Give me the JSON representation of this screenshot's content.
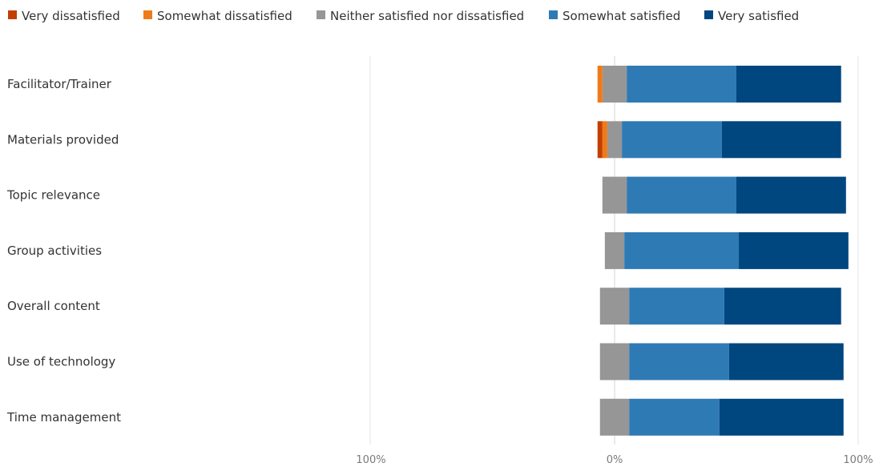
{
  "chart_data": {
    "type": "bar",
    "orientation": "horizontal",
    "stacked": "diverging",
    "title": "",
    "xlabel": "",
    "ylabel": "",
    "xlim": [
      -100,
      100
    ],
    "x_ticks": [
      "100%",
      "0%",
      "100%"
    ],
    "x_tick_values": [
      -100,
      0,
      100
    ],
    "legend_position": "top-left",
    "grid": false,
    "categories": [
      "Facilitator/Trainer",
      "Materials provided",
      "Topic relevance",
      "Group activities",
      "Overall content",
      "Use of technology",
      "Time management"
    ],
    "series": [
      {
        "name": "Very dissatisfied",
        "color": "#c43e00",
        "values": [
          0,
          2,
          0,
          0,
          0,
          0,
          0
        ]
      },
      {
        "name": "Somewhat dissatisfied",
        "color": "#ef7a1a",
        "values": [
          2,
          2,
          0,
          0,
          0,
          0,
          0
        ]
      },
      {
        "name": "Neither satisfied nor dissatisfied",
        "color": "#969696",
        "values": [
          10,
          6,
          10,
          8,
          12,
          12,
          12
        ]
      },
      {
        "name": "Somewhat satisfied",
        "color": "#2e7ab5",
        "values": [
          45,
          41,
          45,
          47,
          39,
          41,
          37
        ]
      },
      {
        "name": "Very satisfied",
        "color": "#00467f",
        "values": [
          43,
          49,
          45,
          45,
          48,
          47,
          51
        ]
      }
    ]
  }
}
